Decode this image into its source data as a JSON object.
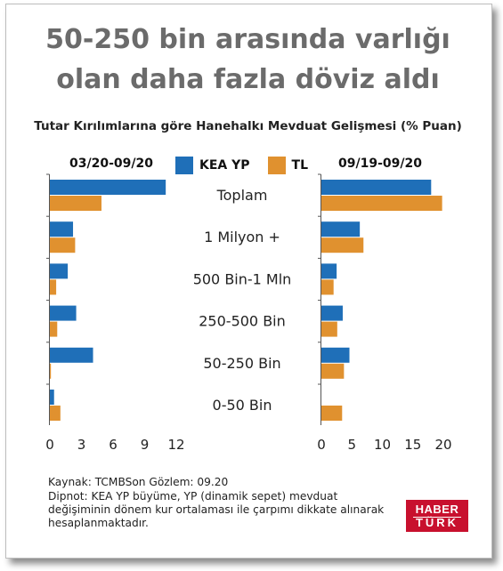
{
  "headline": {
    "line1": "50-250 bin arasında varlığı",
    "line2": "olan daha fazla döviz aldı"
  },
  "chart_data": {
    "type": "bar",
    "title": "Tutar Kırılımlarına göre Hanehalkı Mevduat Gelişmesi (% Puan)",
    "categories": [
      "Toplam",
      "1 Milyon +",
      "500 Bin-1 Mln",
      "250-500 Bin",
      "50-250 Bin",
      "0-50 Bin"
    ],
    "legend": [
      {
        "name": "KEA YP",
        "color": "#1f6fb8"
      },
      {
        "name": "TL",
        "color": "#e0912f"
      }
    ],
    "panels": [
      {
        "period": "03/20-09/20",
        "xlim": [
          0,
          12
        ],
        "ticks": [
          "0",
          "3",
          "6",
          "9",
          "12"
        ],
        "series": [
          {
            "name": "KEA YP",
            "values": [
              11.0,
              2.2,
              1.7,
              2.5,
              4.1,
              0.4
            ]
          },
          {
            "name": "TL",
            "values": [
              4.9,
              2.4,
              0.6,
              0.7,
              0.1,
              1.0
            ]
          }
        ]
      },
      {
        "period": "09/19-09/20",
        "xlim": [
          0,
          20
        ],
        "ticks": [
          "0",
          "5",
          "10",
          "15",
          "20"
        ],
        "series": [
          {
            "name": "KEA YP",
            "values": [
              18.0,
              6.3,
              2.5,
              3.5,
              4.6,
              0.0
            ]
          },
          {
            "name": "TL",
            "values": [
              19.8,
              6.9,
              2.0,
              2.6,
              3.7,
              3.4
            ]
          }
        ]
      }
    ]
  },
  "footer": {
    "source": "Kaynak: TCMBSon Gözlem: 09.20",
    "note": "Dipnot: KEA YP büyüme, YP (dinamik sepet) mevduat değişiminin dönem kur ortalaması ile çarpımı dikkate alınarak hesaplanmaktadır."
  },
  "logo": {
    "line1": "HABER",
    "line2": "TÜRK",
    "color": "#c8102e"
  }
}
